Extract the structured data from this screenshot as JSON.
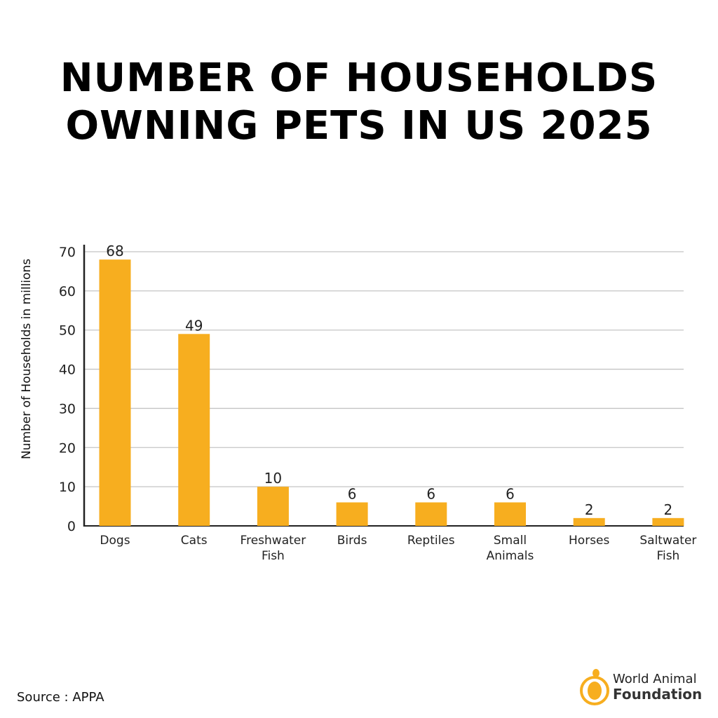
{
  "title_lines": [
    "NUMBER OF HOUSEHOLDS",
    "OWNING PETS IN US 2025"
  ],
  "source": "Source : APPA",
  "logo": {
    "line1": "World Animal",
    "line2": "Foundation",
    "color": "#F7AE1F"
  },
  "chart_data": {
    "type": "bar",
    "title": "NUMBER OF HOUSEHOLDS OWNING PETS IN US 2025",
    "categories": [
      [
        "Dogs"
      ],
      [
        "Cats"
      ],
      [
        "Freshwater",
        "Fish"
      ],
      [
        "Birds"
      ],
      [
        "Reptiles"
      ],
      [
        "Small",
        "Animals"
      ],
      [
        "Horses"
      ],
      [
        "Saltwater",
        "Fish"
      ]
    ],
    "values": [
      68,
      49,
      10,
      6,
      6,
      6,
      2,
      2
    ],
    "data_labels": [
      "68",
      "49",
      "10",
      "6",
      "6",
      "6",
      "2",
      "2"
    ],
    "xlabel": "",
    "ylabel": "Number of Households in millions",
    "ylim": [
      0,
      70
    ],
    "yticks": [
      0,
      10,
      20,
      30,
      40,
      50,
      60,
      70
    ],
    "grid": true,
    "bar_color": "#F7AE1F"
  }
}
